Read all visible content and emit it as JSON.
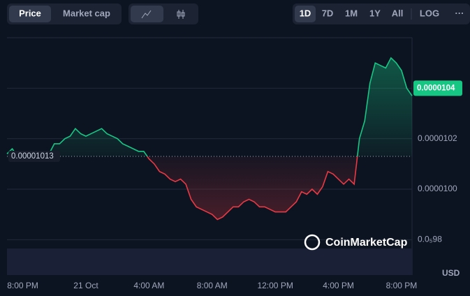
{
  "toolbar": {
    "metric_tabs": [
      "Price",
      "Market cap"
    ],
    "ranges": [
      "1D",
      "7D",
      "1M",
      "1Y",
      "All",
      "LOG",
      "···"
    ]
  },
  "watermark": "CoinMarketCap",
  "chart_data": {
    "type": "line",
    "currency": "USD",
    "values": [
      1.014e-05,
      1.016e-05,
      1.013e-05,
      1.013e-05,
      1.013e-05,
      1.013e-05,
      1.013e-05,
      1.013e-05,
      1.014e-05,
      1.018e-05,
      1.018e-05,
      1.02e-05,
      1.021e-05,
      1.024e-05,
      1.022e-05,
      1.021e-05,
      1.022e-05,
      1.023e-05,
      1.024e-05,
      1.022e-05,
      1.021e-05,
      1.02e-05,
      1.018e-05,
      1.017e-05,
      1.016e-05,
      1.015e-05,
      1.015e-05,
      1.012e-05,
      1.01e-05,
      1.007e-05,
      1.006e-05,
      1.004e-05,
      1.003e-05,
      1.004e-05,
      1.002e-05,
      9.96e-06,
      9.93e-06,
      9.92e-06,
      9.91e-06,
      9.9e-06,
      9.88e-06,
      9.89e-06,
      9.91e-06,
      9.93e-06,
      9.93e-06,
      9.95e-06,
      9.96e-06,
      9.95e-06,
      9.93e-06,
      9.93e-06,
      9.92e-06,
      9.91e-06,
      9.91e-06,
      9.91e-06,
      9.93e-06,
      9.95e-06,
      9.99e-06,
      9.98e-06,
      1e-05,
      9.98e-06,
      1.001e-05,
      1.007e-05,
      1.006e-05,
      1.004e-05,
      1.002e-05,
      1.004e-05,
      1.002e-05,
      1.02e-05,
      1.027e-05,
      1.042e-05,
      1.05e-05,
      1.049e-05,
      1.048e-05,
      1.052e-05,
      1.05e-05,
      1.047e-05,
      1.04e-05,
      1.037e-05
    ],
    "baseline": {
      "value": 1.013e-05,
      "label": "0.00001013"
    },
    "price_tag": {
      "value": 1.04e-05,
      "label": "0.0000104"
    },
    "up_color": "#16c784",
    "down_color": "#ea3943",
    "xlim": [
      0,
      77
    ],
    "xticks": [
      {
        "value": 3,
        "label": "8:00 PM"
      },
      {
        "value": 15,
        "label": "21 Oct"
      },
      {
        "value": 27,
        "label": "4:00 AM"
      },
      {
        "value": 39,
        "label": "8:00 AM"
      },
      {
        "value": 51,
        "label": "12:00 PM"
      },
      {
        "value": 63,
        "label": "4:00 PM"
      },
      {
        "value": 75,
        "label": "8:00 PM"
      }
    ],
    "ylim": [
      9.66e-06,
      1.06e-05
    ],
    "yticks": [
      {
        "value": 9.8e-06,
        "label": "0.0₅98"
      },
      {
        "value": 1e-05,
        "label": "0.0000100"
      },
      {
        "value": 1.02e-05,
        "label": "0.0000102"
      }
    ],
    "grid": true
  }
}
